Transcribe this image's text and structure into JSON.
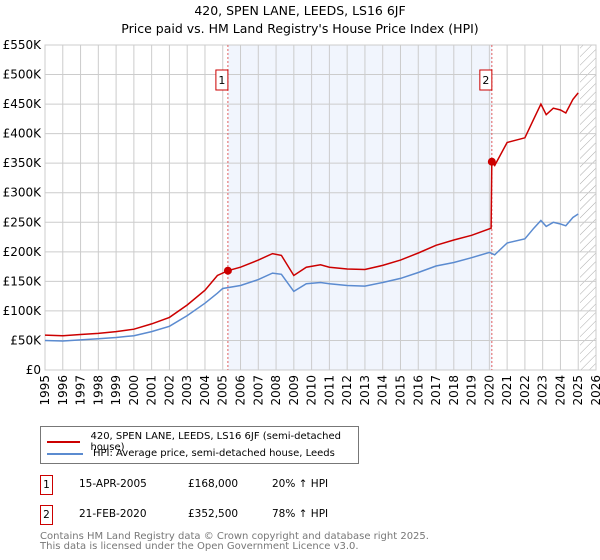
{
  "title": "420, SPEN LANE, LEEDS, LS16 6JF",
  "subtitle": "Price paid vs. HM Land Registry's House Price Index (HPI)",
  "chart_data": {
    "type": "line",
    "title": "420, SPEN LANE, LEEDS, LS16 6JF",
    "subtitle": "Price paid vs. HM Land Registry's House Price Index (HPI)",
    "xlim": [
      1995,
      2026
    ],
    "ylim": [
      0,
      550000
    ],
    "x_ticks": [
      "1995",
      "1996",
      "1997",
      "1998",
      "1999",
      "2000",
      "2001",
      "2002",
      "2003",
      "2004",
      "2005",
      "2006",
      "2007",
      "2008",
      "2009",
      "2010",
      "2011",
      "2012",
      "2013",
      "2014",
      "2015",
      "2016",
      "2017",
      "2018",
      "2019",
      "2020",
      "2021",
      "2022",
      "2023",
      "2024",
      "2025",
      "2026"
    ],
    "y_ticks": [
      {
        "v": 0,
        "label": "£0"
      },
      {
        "v": 50000,
        "label": "£50K"
      },
      {
        "v": 100000,
        "label": "£100K"
      },
      {
        "v": 150000,
        "label": "£150K"
      },
      {
        "v": 200000,
        "label": "£200K"
      },
      {
        "v": 250000,
        "label": "£250K"
      },
      {
        "v": 300000,
        "label": "£300K"
      },
      {
        "v": 350000,
        "label": "£350K"
      },
      {
        "v": 400000,
        "label": "£400K"
      },
      {
        "v": 450000,
        "label": "£450K"
      },
      {
        "v": 500000,
        "label": "£500K"
      },
      {
        "v": 550000,
        "label": "£550K"
      }
    ],
    "grid": true,
    "shaded_range": [
      2005.29,
      2020.14
    ],
    "future_hatch_from": 2025.1,
    "series": [
      {
        "name": "420, SPEN LANE, LEEDS, LS16 6JF (semi-detached house)",
        "color": "#cc0000",
        "x": [
          1995,
          1996,
          1997,
          1998,
          1999,
          2000,
          2001,
          2002,
          2003,
          2004,
          2004.7,
          2005.29,
          2006,
          2007,
          2007.8,
          2008.3,
          2009,
          2009.7,
          2010.5,
          2011,
          2012,
          2013,
          2014,
          2015,
          2016,
          2017,
          2018,
          2019,
          2020.1,
          2020.14,
          2020.3,
          2021,
          2022,
          2022.5,
          2022.9,
          2023.2,
          2023.6,
          2024,
          2024.3,
          2024.7,
          2025
        ],
        "y": [
          59000,
          58000,
          60000,
          62000,
          65000,
          69000,
          78000,
          89000,
          110000,
          135000,
          160000,
          168000,
          174000,
          186000,
          197000,
          194000,
          160000,
          174000,
          178000,
          174000,
          171000,
          170000,
          177000,
          186000,
          198000,
          211000,
          220000,
          228000,
          240000,
          352500,
          346000,
          385000,
          393000,
          425000,
          450000,
          432000,
          443000,
          440000,
          435000,
          458000,
          469000
        ]
      },
      {
        "name": "HPI: Average price, semi-detached house, Leeds",
        "color": "#5b8bd0",
        "x": [
          1995,
          1996,
          1997,
          1998,
          1999,
          2000,
          2001,
          2002,
          2003,
          2004,
          2004.7,
          2005,
          2006,
          2007,
          2007.8,
          2008.3,
          2009,
          2009.7,
          2010.5,
          2011,
          2012,
          2013,
          2014,
          2015,
          2016,
          2017,
          2018,
          2019,
          2020,
          2020.3,
          2021,
          2022,
          2022.5,
          2022.9,
          2023.2,
          2023.6,
          2024,
          2024.3,
          2024.7,
          2025
        ],
        "y": [
          50000,
          49000,
          51000,
          53000,
          55000,
          58000,
          65000,
          74000,
          92000,
          113000,
          130000,
          138000,
          143000,
          153000,
          164000,
          162000,
          133000,
          146000,
          148000,
          146000,
          143000,
          142000,
          148000,
          155000,
          165000,
          176000,
          182000,
          190000,
          199000,
          195000,
          215000,
          222000,
          240000,
          253000,
          243000,
          250000,
          247000,
          244000,
          258000,
          264000
        ]
      }
    ],
    "annotations": [
      {
        "label": "1",
        "x": 2005.29,
        "y": 168000
      },
      {
        "label": "2",
        "x": 2020.14,
        "y": 352500
      }
    ]
  },
  "legend": {
    "items": [
      {
        "label": "420, SPEN LANE, LEEDS, LS16 6JF (semi-detached house)",
        "color": "#cc0000"
      },
      {
        "label": "HPI: Average price, semi-detached house, Leeds",
        "color": "#5b8bd0"
      }
    ]
  },
  "sales": [
    {
      "num": "1",
      "date": "15-APR-2005",
      "price": "£168,000",
      "hpi": "20% ↑ HPI"
    },
    {
      "num": "2",
      "date": "21-FEB-2020",
      "price": "£352,500",
      "hpi": "78% ↑ HPI"
    }
  ],
  "footer": {
    "line1": "Contains HM Land Registry data © Crown copyright and database right 2025.",
    "line2": "This data is licensed under the Open Government Licence v3.0."
  }
}
